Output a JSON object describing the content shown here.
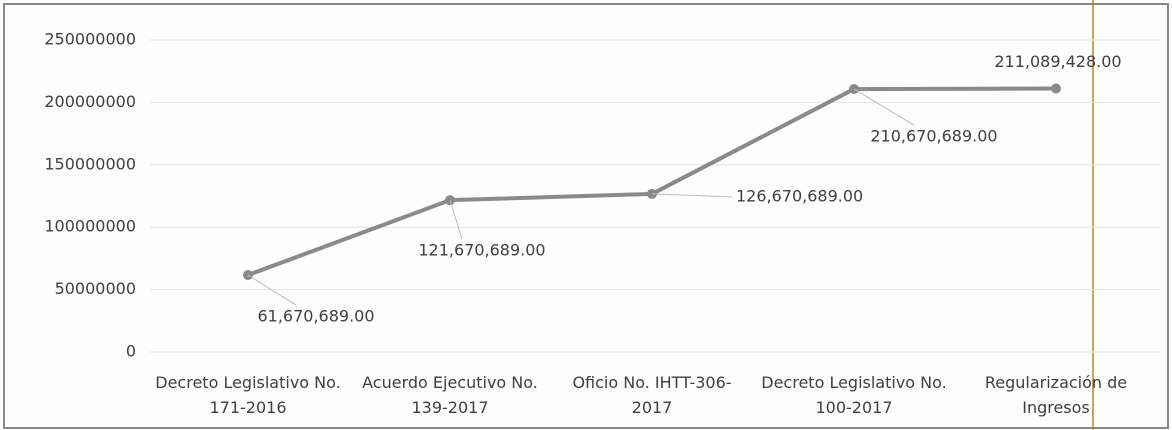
{
  "chart_data": {
    "type": "line",
    "categories": [
      "Decreto Legislativo No. 171-2016",
      "Acuerdo Ejecutivo No. 139-2017",
      "Oficio No. IHTT-306-2017",
      "Decreto Legislativo No. 100-2017",
      "Regularización de Ingresos"
    ],
    "series": [
      {
        "color": "#8a8a8a",
        "values": [
          61670689,
          121670689,
          126670689,
          210670689,
          211089428
        ],
        "value_labels": [
          "61,670,689.00",
          "121,670,689.00",
          "126,670,689.00",
          "210,670,689.00",
          "211,089,428.00"
        ]
      }
    ],
    "ylim": [
      0,
      250000000
    ],
    "yticks": [
      0,
      50000000,
      100000000,
      150000000,
      200000000,
      250000000
    ],
    "grid": true
  }
}
